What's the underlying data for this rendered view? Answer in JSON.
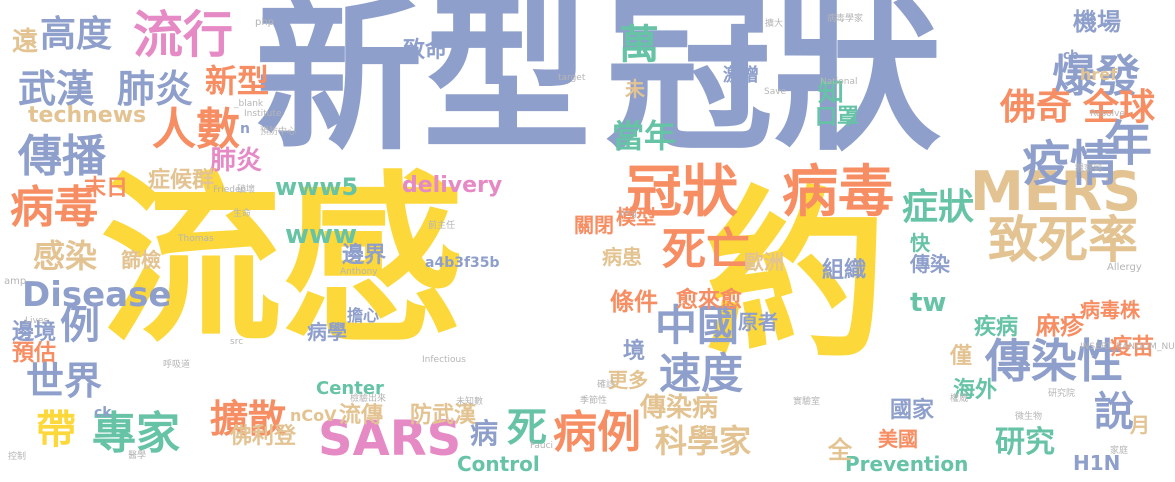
{
  "palette": {
    "blue": "#8e9fcb",
    "yellow": "#fcd83b",
    "orange": "#f78d62",
    "green": "#a5d561",
    "tan": "#e3c391",
    "teal": "#66c3a5",
    "pink": "#e58ac5",
    "gray": "#b5b5b5"
  },
  "words": [
    {
      "text": "新型",
      "color": "blue"
    },
    {
      "text": "冠狀",
      "color": "blue"
    },
    {
      "text": "流感",
      "color": "yellow"
    },
    {
      "text": "約",
      "color": "yellow"
    },
    {
      "text": "流行",
      "color": "pink"
    },
    {
      "text": "高度",
      "color": "blue"
    },
    {
      "text": "武漢",
      "color": "blue"
    },
    {
      "text": "肺炎",
      "color": "blue"
    },
    {
      "text": "新型",
      "color": "orange"
    },
    {
      "text": "肺炎",
      "color": "pink"
    },
    {
      "text": "致命",
      "color": "blue"
    },
    {
      "text": "萬",
      "color": "teal"
    },
    {
      "text": "人數",
      "color": "orange"
    },
    {
      "text": "傳播",
      "color": "blue"
    },
    {
      "text": "病毒",
      "color": "orange"
    },
    {
      "text": "冠狀",
      "color": "orange"
    },
    {
      "text": "病毒",
      "color": "orange"
    },
    {
      "text": "MERS",
      "color": "tan"
    },
    {
      "text": "致死率",
      "color": "tan"
    },
    {
      "text": "爆發",
      "color": "blue"
    },
    {
      "text": "佛奇",
      "color": "orange"
    },
    {
      "text": "全球",
      "color": "orange"
    },
    {
      "text": "年",
      "color": "blue"
    },
    {
      "text": "疫情",
      "color": "blue"
    },
    {
      "text": "傳染性",
      "color": "blue"
    },
    {
      "text": "機場",
      "color": "blue"
    },
    {
      "text": "症狀",
      "color": "teal"
    },
    {
      "text": "當年",
      "color": "teal"
    },
    {
      "text": "死亡",
      "color": "orange"
    },
    {
      "text": "中國",
      "color": "blue"
    },
    {
      "text": "速度",
      "color": "blue"
    },
    {
      "text": "病例",
      "color": "orange"
    },
    {
      "text": "專家",
      "color": "teal"
    },
    {
      "text": "擴散",
      "color": "orange"
    },
    {
      "text": "SARS",
      "color": "pink"
    },
    {
      "text": "世界",
      "color": "blue"
    },
    {
      "text": "科學家",
      "color": "tan"
    },
    {
      "text": "傳染病",
      "color": "tan"
    },
    {
      "text": "研究",
      "color": "teal"
    },
    {
      "text": "說",
      "color": "blue"
    },
    {
      "text": "technews",
      "color": "tan"
    },
    {
      "text": "www5",
      "color": "teal"
    },
    {
      "text": "www",
      "color": "teal"
    },
    {
      "text": "delivery",
      "color": "pink"
    },
    {
      "text": "Disease",
      "color": "blue"
    },
    {
      "text": "感染",
      "color": "tan"
    },
    {
      "text": "例",
      "color": "blue"
    },
    {
      "text": "症候群",
      "color": "tan"
    },
    {
      "text": "末日",
      "color": "orange"
    },
    {
      "text": "模型",
      "color": "orange"
    },
    {
      "text": "關閉",
      "color": "orange"
    },
    {
      "text": "邊界",
      "color": "blue"
    },
    {
      "text": "篩檢",
      "color": "tan"
    },
    {
      "text": "病患",
      "color": "tan"
    },
    {
      "text": "條件",
      "color": "orange"
    },
    {
      "text": "歐洲",
      "color": "tan"
    },
    {
      "text": "組織",
      "color": "blue"
    },
    {
      "text": "愈來愈",
      "color": "orange"
    },
    {
      "text": "tw",
      "color": "teal"
    },
    {
      "text": "病毒株",
      "color": "orange"
    },
    {
      "text": "麻疹",
      "color": "orange"
    },
    {
      "text": "疫苗",
      "color": "orange"
    },
    {
      "text": "疾病",
      "color": "teal"
    },
    {
      "text": "原者",
      "color": "blue"
    },
    {
      "text": "病學",
      "color": "blue"
    },
    {
      "text": "流傳",
      "color": "tan"
    },
    {
      "text": "防武漢",
      "color": "tan"
    },
    {
      "text": "國家",
      "color": "blue"
    },
    {
      "text": "海外",
      "color": "teal"
    },
    {
      "text": "月",
      "color": "tan"
    },
    {
      "text": "Control",
      "color": "teal"
    },
    {
      "text": "Prevention",
      "color": "teal"
    },
    {
      "text": "H1N",
      "color": "blue"
    },
    {
      "text": "佛利登",
      "color": "tan"
    },
    {
      "text": "帶",
      "color": "yellow"
    },
    {
      "text": "病",
      "color": "blue"
    },
    {
      "text": "死",
      "color": "teal"
    },
    {
      "text": "全",
      "color": "tan"
    },
    {
      "text": "預估",
      "color": "orange"
    },
    {
      "text": "邊境",
      "color": "blue"
    },
    {
      "text": "境",
      "color": "blue"
    },
    {
      "text": "更多",
      "color": "tan"
    },
    {
      "text": "美國",
      "color": "orange"
    },
    {
      "text": "口罩",
      "color": "teal"
    },
    {
      "text": "知",
      "color": "teal"
    },
    {
      "text": "未",
      "color": "tan"
    },
    {
      "text": "激增",
      "color": "blue"
    },
    {
      "text": "快",
      "color": "teal"
    },
    {
      "text": "傳染",
      "color": "blue"
    },
    {
      "text": "遠",
      "color": "tan"
    },
    {
      "text": "a4b3f35b",
      "color": "blue"
    },
    {
      "text": "Center",
      "color": "teal"
    },
    {
      "text": "擔心",
      "color": "blue"
    },
    {
      "text": "僅",
      "color": "tan"
    },
    {
      "text": "nCoV",
      "color": "tan"
    },
    {
      "text": "href",
      "color": "tan"
    },
    {
      "text": "cb",
      "color": "blue"
    },
    {
      "text": "n",
      "color": "blue"
    },
    {
      "text": "amp",
      "color": "gray"
    },
    {
      "text": "ck",
      "color": "blue"
    },
    {
      "text": "php",
      "color": "gray"
    },
    {
      "text": "Allergy",
      "color": "gray"
    },
    {
      "text": "INSERT_RANDOM_NUMBER_HERE",
      "color": "gray"
    },
    {
      "text": "National",
      "color": "gray"
    },
    {
      "text": "Institute",
      "color": "gray"
    },
    {
      "text": "Infectious",
      "color": "gray"
    },
    {
      "text": "Thomas",
      "color": "gray"
    },
    {
      "text": "Anthony",
      "color": "gray"
    },
    {
      "text": "Fauci",
      "color": "gray"
    },
    {
      "text": "Frieden",
      "color": "gray"
    },
    {
      "text": "target",
      "color": "gray"
    },
    {
      "text": "_blank",
      "color": "gray"
    },
    {
      "text": "Save",
      "color": "gray"
    },
    {
      "text": "Lives",
      "color": "gray"
    },
    {
      "text": "Resolve",
      "color": "gray"
    },
    {
      "text": "src",
      "color": "gray"
    },
    {
      "text": "img",
      "color": "gray"
    },
    {
      "text": "病毒學家",
      "color": "gray"
    },
    {
      "text": "預防中心",
      "color": "gray"
    },
    {
      "text": "研究院",
      "color": "gray"
    },
    {
      "text": "前主任",
      "color": "gray"
    },
    {
      "text": "實驗室",
      "color": "gray"
    },
    {
      "text": "微生物",
      "color": "gray"
    },
    {
      "text": "呼吸道",
      "color": "gray"
    },
    {
      "text": "季節性",
      "color": "gray"
    },
    {
      "text": "檢驗出來",
      "color": "gray"
    },
    {
      "text": "未知數",
      "color": "gray"
    },
    {
      "text": "破壞",
      "color": "gray"
    },
    {
      "text": "生命",
      "color": "gray"
    },
    {
      "text": "確診",
      "color": "gray"
    },
    {
      "text": "觀察到",
      "color": "gray"
    },
    {
      "text": "醫學",
      "color": "gray"
    },
    {
      "text": "控制",
      "color": "gray"
    },
    {
      "text": "擴大",
      "color": "gray"
    },
    {
      "text": "權威",
      "color": "gray"
    },
    {
      "text": "家庭",
      "color": "gray"
    }
  ]
}
